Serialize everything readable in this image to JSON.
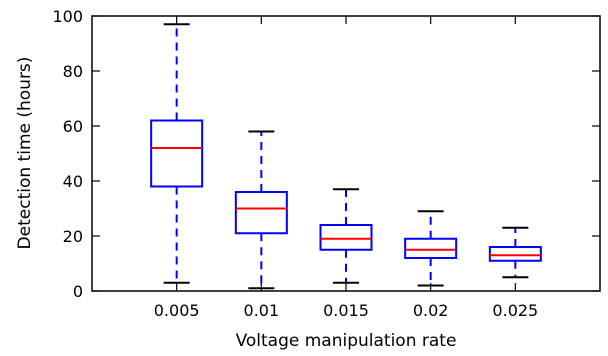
{
  "chart_data": {
    "type": "box",
    "categories": [
      "0.005",
      "0.01",
      "0.015",
      "0.02",
      "0.025"
    ],
    "boxes": [
      {
        "whisker_low": 3,
        "q1": 38,
        "median": 52,
        "q3": 62,
        "whisker_high": 97
      },
      {
        "whisker_low": 1,
        "q1": 21,
        "median": 30,
        "q3": 36,
        "whisker_high": 58
      },
      {
        "whisker_low": 3,
        "q1": 15,
        "median": 19,
        "q3": 24,
        "whisker_high": 37
      },
      {
        "whisker_low": 2,
        "q1": 12,
        "median": 15,
        "q3": 19,
        "whisker_high": 29
      },
      {
        "whisker_low": 5,
        "q1": 11,
        "median": 13,
        "q3": 16,
        "whisker_high": 23
      }
    ],
    "xlabel": "Voltage manipulation rate",
    "ylabel": "Detection time (hours)",
    "ylim": [
      0,
      100
    ],
    "yticks": [
      0,
      20,
      40,
      60,
      80,
      100
    ],
    "grid": false,
    "colors": {
      "box": "#0000ff",
      "median": "#ff0000",
      "cap": "#000000",
      "axes": "#000000"
    }
  }
}
